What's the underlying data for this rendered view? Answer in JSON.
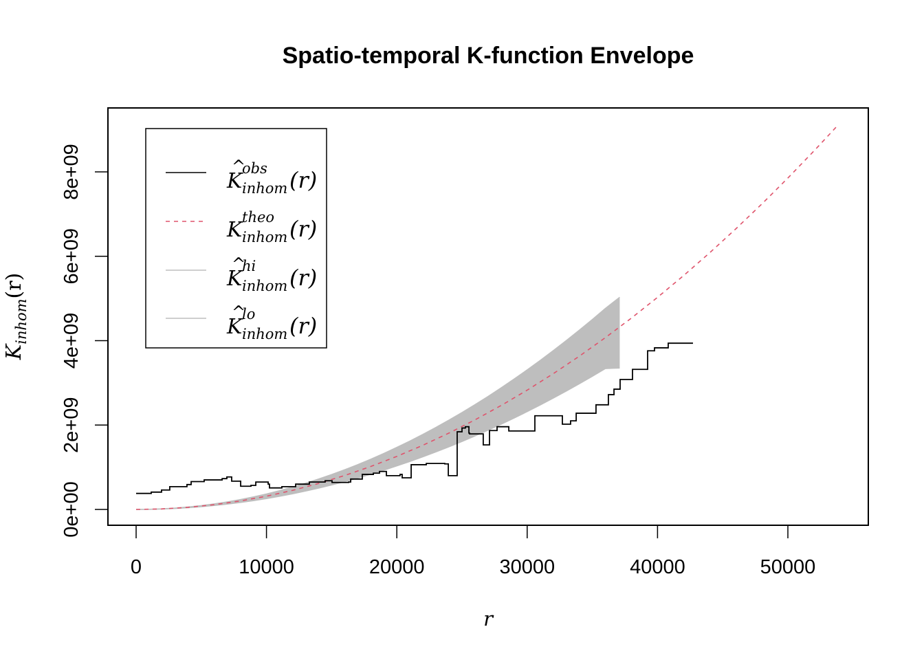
{
  "chart_data": {
    "type": "line",
    "title": "Spatio-temporal K-function Envelope",
    "xlabel": "r",
    "ylabel": {
      "main": "K",
      "sub": "inhom",
      "arg": "(r)"
    },
    "xlim": [
      -2200,
      56200
    ],
    "ylim": [
      -370000000.0,
      9500000000.0
    ],
    "x_ticks": [
      0,
      10000,
      20000,
      30000,
      40000,
      50000
    ],
    "x_tick_labels": [
      "0",
      "10000",
      "20000",
      "30000",
      "40000",
      "50000"
    ],
    "y_ticks": [
      0,
      2000000000.0,
      4000000000.0,
      6000000000.0,
      8000000000.0
    ],
    "y_tick_labels": [
      "0e+00",
      "2e+09",
      "4e+09",
      "6e+09",
      "8e+09"
    ],
    "legend_position": "top-left",
    "legend": [
      {
        "series": "obs",
        "hat": true,
        "main": "K",
        "sup": "obs",
        "sub": "inhom",
        "arg": "(r)",
        "color": "#000000",
        "dash": "solid"
      },
      {
        "series": "theo",
        "hat": false,
        "main": "K",
        "sup": "theo",
        "sub": "inhom",
        "arg": "(r)",
        "color": "#DF536B",
        "dash": "dashed"
      },
      {
        "series": "hi",
        "hat": true,
        "main": "K",
        "sup": "hi",
        "sub": "inhom",
        "arg": "(r)",
        "color": "#BEBEBE",
        "dash": "solid"
      },
      {
        "series": "lo",
        "hat": true,
        "main": "K",
        "sup": "lo",
        "sub": "inhom",
        "arg": "(r)",
        "color": "#BEBEBE",
        "dash": "solid"
      }
    ],
    "y_unit": 1000000000.0,
    "envelope": {
      "r": [
        0,
        1000,
        2000,
        3000,
        4000,
        5000,
        6000,
        7000,
        8000,
        9000,
        10000,
        11000,
        12000,
        13000,
        14000,
        15000,
        16000,
        17000,
        18000,
        19000,
        20000,
        21000,
        22000,
        23000,
        24000,
        25000,
        26000,
        27000,
        28000,
        29000,
        30000,
        31000,
        32000,
        33000,
        34000,
        35000,
        36000,
        37100
      ],
      "hi": [
        0,
        0.0037,
        0.0147,
        0.0331,
        0.0589,
        0.0918,
        0.132,
        0.18,
        0.235,
        0.297,
        0.367,
        0.445,
        0.529,
        0.621,
        0.721,
        0.827,
        0.941,
        1.062,
        1.191,
        1.327,
        1.471,
        1.62,
        1.78,
        1.945,
        2.118,
        2.297,
        2.485,
        2.679,
        2.882,
        3.091,
        3.308,
        3.532,
        3.764,
        4.003,
        4.249,
        4.502,
        4.764,
        5.03
      ],
      "lo": [
        0,
        0.0026,
        0.0103,
        0.0232,
        0.0412,
        0.0644,
        0.0927,
        0.126,
        0.165,
        0.208,
        0.257,
        0.312,
        0.371,
        0.435,
        0.505,
        0.58,
        0.659,
        0.745,
        0.835,
        0.93,
        1.031,
        1.136,
        1.247,
        1.363,
        1.484,
        1.61,
        1.742,
        1.878,
        2.02,
        2.166,
        2.318,
        2.476,
        2.638,
        2.805,
        2.978,
        3.155,
        3.339,
        3.35
      ]
    },
    "theo": {
      "r": [
        0,
        2000,
        4000,
        6000,
        8000,
        10000,
        12000,
        14000,
        16000,
        18000,
        20000,
        22000,
        24000,
        26000,
        28000,
        30000,
        32000,
        34000,
        36000,
        38000,
        40000,
        42000,
        44000,
        46000,
        48000,
        50000,
        52000,
        53800
      ],
      "k": [
        0,
        0.0126,
        0.0503,
        0.113,
        0.201,
        0.314,
        0.452,
        0.616,
        0.804,
        1.018,
        1.257,
        1.521,
        1.81,
        2.124,
        2.463,
        2.827,
        3.217,
        3.632,
        4.072,
        4.536,
        5.027,
        5.542,
        6.082,
        6.648,
        7.238,
        7.854,
        8.495,
        9.093
      ]
    },
    "obs": [
      [
        0,
        0.38
      ],
      [
        1160,
        0.41
      ],
      [
        1950,
        0.46
      ],
      [
        2580,
        0.54
      ],
      [
        3900,
        0.59
      ],
      [
        4220,
        0.66
      ],
      [
        5220,
        0.7
      ],
      [
        6600,
        0.73
      ],
      [
        6960,
        0.77
      ],
      [
        7330,
        0.67
      ],
      [
        8020,
        0.55
      ],
      [
        8810,
        0.57
      ],
      [
        9180,
        0.65
      ],
      [
        10130,
        0.6
      ],
      [
        10230,
        0.51
      ],
      [
        11180,
        0.54
      ],
      [
        12240,
        0.6
      ],
      [
        13290,
        0.65
      ],
      [
        14500,
        0.68
      ],
      [
        15030,
        0.64
      ],
      [
        16300,
        0.65
      ],
      [
        16460,
        0.72
      ],
      [
        17350,
        0.83
      ],
      [
        18200,
        0.86
      ],
      [
        18670,
        0.9
      ],
      [
        19200,
        0.8
      ],
      [
        20250,
        0.83
      ],
      [
        20410,
        0.75
      ],
      [
        21100,
        1.06
      ],
      [
        22260,
        1.09
      ],
      [
        23680,
        1.08
      ],
      [
        23950,
        0.8
      ],
      [
        24630,
        1.84
      ],
      [
        25000,
        1.93
      ],
      [
        25260,
        1.96
      ],
      [
        25530,
        1.81
      ],
      [
        25580,
        1.79
      ],
      [
        26630,
        1.53
      ],
      [
        27110,
        1.87
      ],
      [
        27690,
        1.96
      ],
      [
        28590,
        1.86
      ],
      [
        30590,
        2.22
      ],
      [
        32700,
        2.02
      ],
      [
        33330,
        2.1
      ],
      [
        33760,
        2.28
      ],
      [
        35280,
        2.48
      ],
      [
        36230,
        2.72
      ],
      [
        36660,
        2.85
      ],
      [
        37130,
        3.08
      ],
      [
        38080,
        3.32
      ],
      [
        39240,
        3.76
      ],
      [
        39770,
        3.83
      ],
      [
        40820,
        3.94
      ],
      [
        42720,
        3.94
      ]
    ]
  }
}
